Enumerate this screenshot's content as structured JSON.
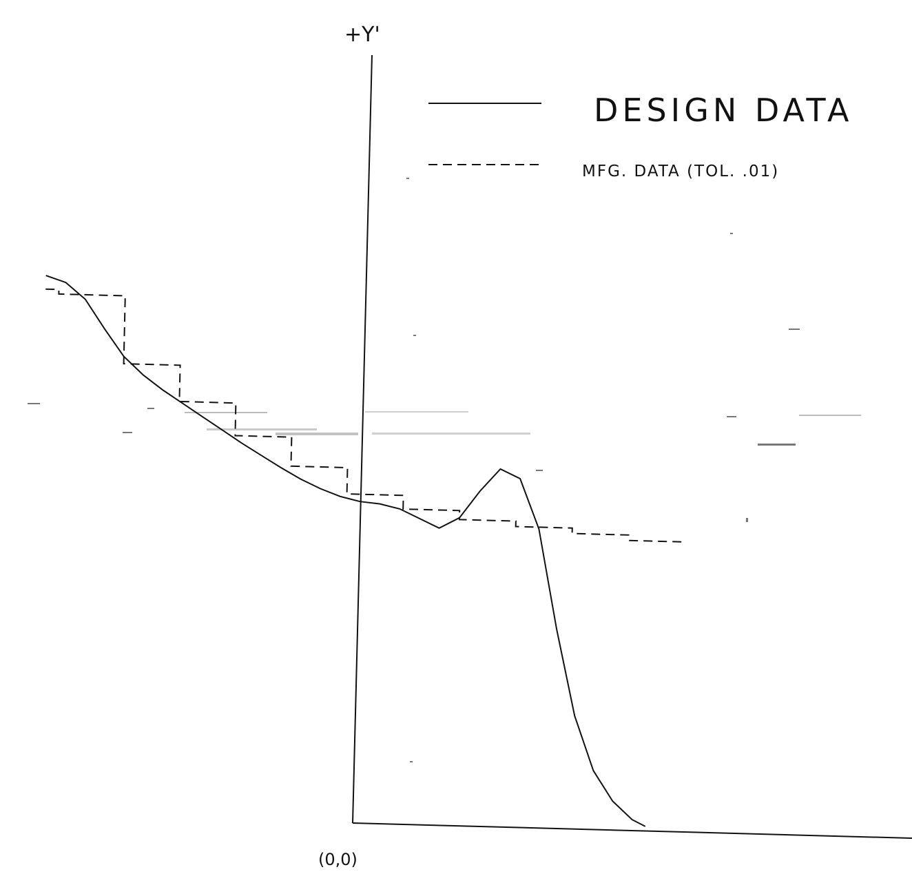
{
  "chart_data": {
    "type": "line",
    "title": "",
    "xlabel": "",
    "ylabel": "+Y'",
    "origin_label": "(0,0)",
    "xlim": [
      -4.85,
      7.5
    ],
    "ylim": [
      0,
      8.2
    ],
    "grid": false,
    "legend_position": "top-right",
    "series": [
      {
        "name": "DESIGN DATA",
        "style": "solid",
        "x": [
          -4.8,
          -4.5,
          -4.2,
          -3.9,
          -3.6,
          -3.3,
          -3.0,
          -2.7,
          -2.4,
          -2.1,
          -1.8,
          -1.5,
          -1.2,
          -0.9,
          -0.6,
          -0.3,
          0.0,
          0.3,
          0.6,
          0.9,
          1.2,
          1.5,
          1.8,
          2.1,
          2.4,
          2.7,
          3.0,
          3.3,
          3.6,
          3.9,
          4.2,
          4.4
        ],
        "y": [
          5.95,
          5.88,
          5.7,
          5.38,
          5.08,
          4.88,
          4.72,
          4.58,
          4.44,
          4.3,
          4.16,
          4.03,
          3.9,
          3.78,
          3.68,
          3.6,
          3.55,
          3.53,
          3.48,
          3.38,
          3.28,
          3.4,
          3.7,
          3.95,
          3.85,
          3.3,
          2.2,
          1.25,
          0.65,
          0.32,
          0.12,
          0.05
        ]
      },
      {
        "name": "MFG. DATA (TOL. .01)",
        "style": "dashed",
        "x": [
          -4.8,
          -4.6,
          -4.6,
          -3.6,
          -3.6,
          -2.75,
          -2.75,
          -1.9,
          -1.9,
          -1.05,
          -1.05,
          -0.2,
          -0.2,
          0.65,
          0.65,
          1.5,
          1.5,
          2.35,
          2.35,
          3.2,
          3.2,
          4.05,
          4.05,
          4.9
        ],
        "y": [
          5.8,
          5.8,
          5.75,
          5.75,
          5.0,
          5.0,
          4.6,
          4.6,
          4.24,
          4.24,
          3.92,
          3.92,
          3.63,
          3.63,
          3.48,
          3.48,
          3.38,
          3.38,
          3.32,
          3.32,
          3.26,
          3.26,
          3.2,
          3.2
        ]
      }
    ]
  }
}
